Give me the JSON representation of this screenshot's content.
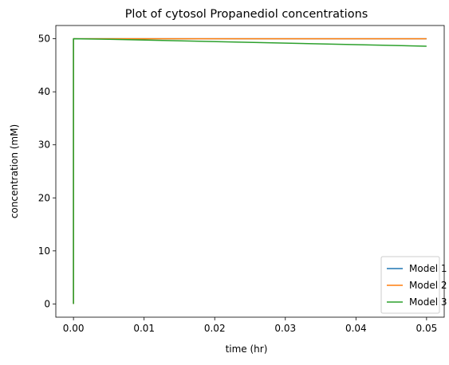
{
  "chart_data": {
    "type": "line",
    "title": "Plot of cytosol Propanediol concentrations",
    "xlabel": "time (hr)",
    "ylabel": "concentration (mM)",
    "xlim": [
      -0.0025,
      0.0525
    ],
    "ylim": [
      -2.5,
      52.5
    ],
    "xticks": [
      0.0,
      0.01,
      0.02,
      0.03,
      0.04,
      0.05
    ],
    "xtick_labels": [
      "0.00",
      "0.01",
      "0.02",
      "0.03",
      "0.04",
      "0.05"
    ],
    "yticks": [
      0,
      10,
      20,
      30,
      40,
      50
    ],
    "ytick_labels": [
      "0",
      "10",
      "20",
      "30",
      "40",
      "50"
    ],
    "grid": false,
    "legend_position": "lower-right",
    "series": [
      {
        "name": "Model 1",
        "color": "#1f77b4",
        "x": [
          0.0,
          0.0,
          0.005,
          0.05
        ],
        "y": [
          0,
          50,
          50,
          50
        ]
      },
      {
        "name": "Model 2",
        "color": "#ff7f0e",
        "x": [
          0.0,
          0.0,
          0.005,
          0.05
        ],
        "y": [
          0,
          50,
          50,
          50
        ]
      },
      {
        "name": "Model 3",
        "color": "#2ca02c",
        "x": [
          0.0,
          0.0,
          0.005,
          0.05
        ],
        "y": [
          0,
          50,
          49.9,
          48.6
        ]
      }
    ]
  }
}
